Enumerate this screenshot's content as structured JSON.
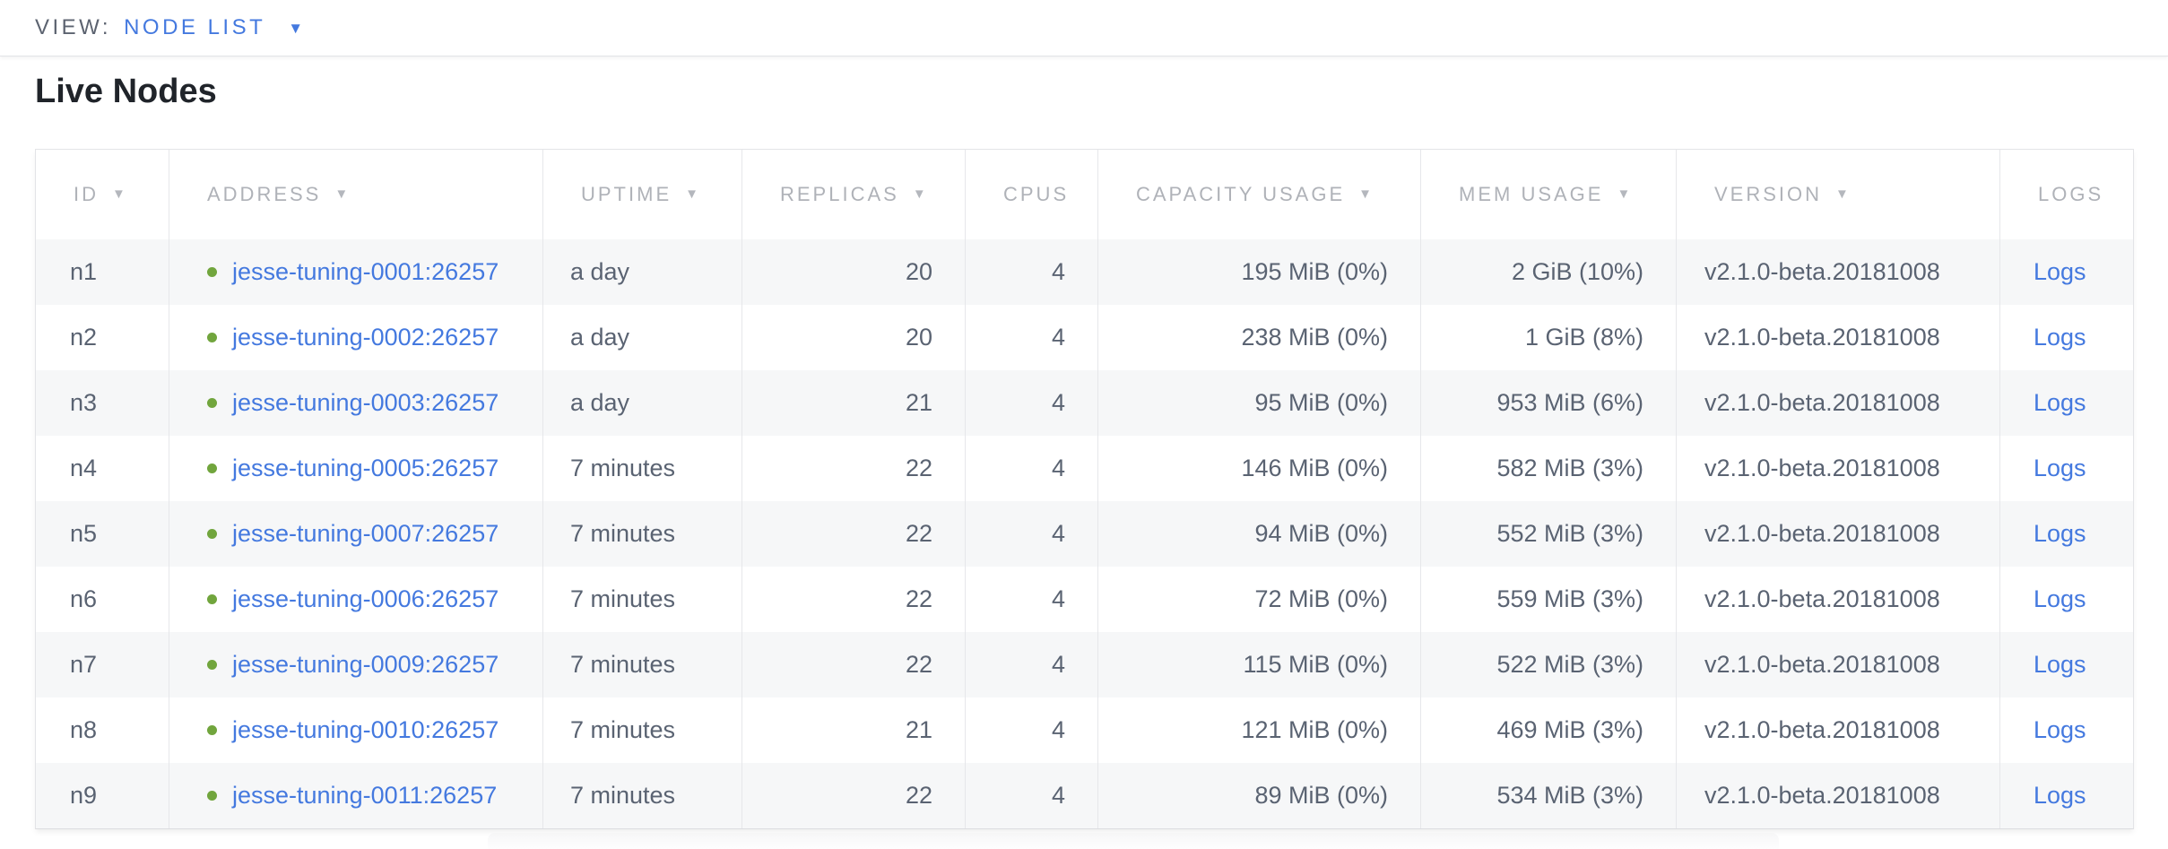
{
  "view_bar": {
    "label": "VIEW:",
    "selected_view": "NODE LIST",
    "caret_icon": "▼"
  },
  "page": {
    "title": "Live Nodes"
  },
  "table": {
    "columns": [
      {
        "key": "id",
        "label": "ID",
        "sortable": true,
        "align": "left"
      },
      {
        "key": "address",
        "label": "ADDRESS",
        "sortable": true,
        "align": "left"
      },
      {
        "key": "uptime",
        "label": "UPTIME",
        "sortable": true,
        "align": "left"
      },
      {
        "key": "replicas",
        "label": "REPLICAS",
        "sortable": true,
        "align": "right"
      },
      {
        "key": "cpus",
        "label": "CPUS",
        "sortable": false,
        "align": "right"
      },
      {
        "key": "capacity",
        "label": "CAPACITY USAGE",
        "sortable": true,
        "align": "right"
      },
      {
        "key": "mem",
        "label": "MEM USAGE",
        "sortable": true,
        "align": "right"
      },
      {
        "key": "version",
        "label": "VERSION",
        "sortable": true,
        "align": "left"
      },
      {
        "key": "logs",
        "label": "LOGS",
        "sortable": false,
        "align": "left"
      }
    ],
    "rows": [
      {
        "id": "n1",
        "status": "live",
        "address": "jesse-tuning-0001:26257",
        "uptime": "a day",
        "replicas": "20",
        "cpus": "4",
        "capacity": "195 MiB (0%)",
        "mem": "2 GiB (10%)",
        "version": "v2.1.0-beta.20181008",
        "logs": "Logs"
      },
      {
        "id": "n2",
        "status": "live",
        "address": "jesse-tuning-0002:26257",
        "uptime": "a day",
        "replicas": "20",
        "cpus": "4",
        "capacity": "238 MiB (0%)",
        "mem": "1 GiB (8%)",
        "version": "v2.1.0-beta.20181008",
        "logs": "Logs"
      },
      {
        "id": "n3",
        "status": "live",
        "address": "jesse-tuning-0003:26257",
        "uptime": "a day",
        "replicas": "21",
        "cpus": "4",
        "capacity": "95 MiB (0%)",
        "mem": "953 MiB (6%)",
        "version": "v2.1.0-beta.20181008",
        "logs": "Logs"
      },
      {
        "id": "n4",
        "status": "live",
        "address": "jesse-tuning-0005:26257",
        "uptime": "7 minutes",
        "replicas": "22",
        "cpus": "4",
        "capacity": "146 MiB (0%)",
        "mem": "582 MiB (3%)",
        "version": "v2.1.0-beta.20181008",
        "logs": "Logs"
      },
      {
        "id": "n5",
        "status": "live",
        "address": "jesse-tuning-0007:26257",
        "uptime": "7 minutes",
        "replicas": "22",
        "cpus": "4",
        "capacity": "94 MiB (0%)",
        "mem": "552 MiB (3%)",
        "version": "v2.1.0-beta.20181008",
        "logs": "Logs"
      },
      {
        "id": "n6",
        "status": "live",
        "address": "jesse-tuning-0006:26257",
        "uptime": "7 minutes",
        "replicas": "22",
        "cpus": "4",
        "capacity": "72 MiB (0%)",
        "mem": "559 MiB (3%)",
        "version": "v2.1.0-beta.20181008",
        "logs": "Logs"
      },
      {
        "id": "n7",
        "status": "live",
        "address": "jesse-tuning-0009:26257",
        "uptime": "7 minutes",
        "replicas": "22",
        "cpus": "4",
        "capacity": "115 MiB (0%)",
        "mem": "522 MiB (3%)",
        "version": "v2.1.0-beta.20181008",
        "logs": "Logs"
      },
      {
        "id": "n8",
        "status": "live",
        "address": "jesse-tuning-0010:26257",
        "uptime": "7 minutes",
        "replicas": "21",
        "cpus": "4",
        "capacity": "121 MiB (0%)",
        "mem": "469 MiB (3%)",
        "version": "v2.1.0-beta.20181008",
        "logs": "Logs"
      },
      {
        "id": "n9",
        "status": "live",
        "address": "jesse-tuning-0011:26257",
        "uptime": "7 minutes",
        "replicas": "22",
        "cpus": "4",
        "capacity": "89 MiB (0%)",
        "mem": "534 MiB (3%)",
        "version": "v2.1.0-beta.20181008",
        "logs": "Logs"
      }
    ]
  },
  "colors": {
    "link_blue": "#4479df",
    "live_green": "#71a53d",
    "header_gray": "#afb2b8",
    "row_stripe": "#f6f7f8",
    "body_text": "#5a6372"
  }
}
